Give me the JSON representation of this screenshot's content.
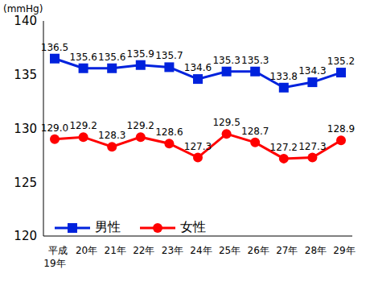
{
  "chart_data": {
    "type": "line",
    "y_label": "(mmHg)",
    "categories": [
      "平成\n19年",
      "20年",
      "21年",
      "22年",
      "23年",
      "24年",
      "25年",
      "26年",
      "27年",
      "28年",
      "29年"
    ],
    "ylim": [
      120,
      140
    ],
    "yticks": [
      120,
      125,
      130,
      135,
      140
    ],
    "grid": false,
    "legend": "lower left",
    "data_labels": true,
    "series": [
      {
        "name": "男性",
        "color": "#0022dd",
        "marker": "square",
        "values": [
          136.5,
          135.6,
          135.6,
          135.9,
          135.7,
          134.6,
          135.3,
          135.3,
          133.8,
          134.3,
          135.2
        ],
        "value_labels": [
          "136.5",
          "135.6",
          "135.6",
          "135.9",
          "135.7",
          "134.6",
          "135.3",
          "135.3",
          "133.8",
          "134.3",
          "135.2"
        ]
      },
      {
        "name": "女性",
        "color": "#ff0000",
        "marker": "circle",
        "values": [
          129.0,
          129.2,
          128.3,
          129.2,
          128.6,
          127.3,
          129.5,
          128.7,
          127.2,
          127.3,
          128.9
        ],
        "value_labels": [
          "129.0",
          "129.2",
          "128.3",
          "129.2",
          "128.6",
          "127.3",
          "129.5",
          "128.7",
          "127.2",
          "127.3",
          "128.9"
        ]
      }
    ]
  }
}
